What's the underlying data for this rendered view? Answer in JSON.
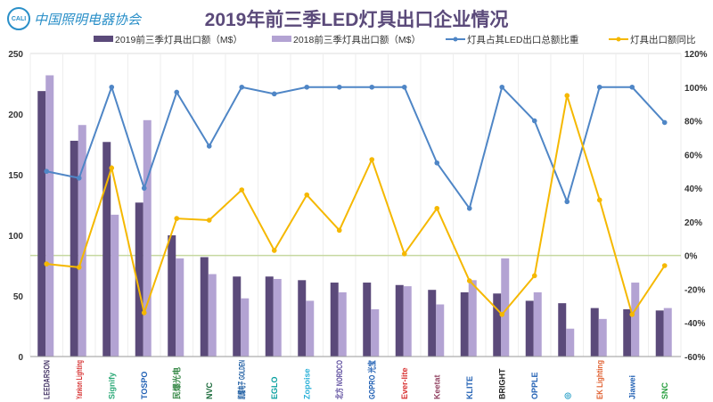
{
  "header": {
    "org_logo_text": "中国照明电器协会",
    "org_logo_mark": "CALI"
  },
  "chart_data": {
    "type": "bar",
    "title": "2019年前三季LED灯具出口企业情况",
    "categories": [
      "LEEDARSON",
      "Yankon Lighting",
      "Signify",
      "TOSPO",
      "民爆光电",
      "NVC",
      "凯耀电子 GOLDEN",
      "EGLO",
      "Zopoise",
      "北方 NORDCO",
      "GOPRO 光宝",
      "Ever-lite",
      "Keetat",
      "KLITE",
      "BRIGHT",
      "OPPLE",
      "(globe logo)",
      "EK Lighting",
      "Jiawei",
      "SNC"
    ],
    "left_axis": {
      "ylim": [
        0,
        250
      ],
      "ticks": [
        0,
        50,
        100,
        150,
        200,
        250
      ]
    },
    "right_axis": {
      "ylim": [
        -60,
        120
      ],
      "ticks": [
        "-60%",
        "-40%",
        "-20%",
        "0%",
        "20%",
        "40%",
        "60%",
        "80%",
        "100%",
        "120%"
      ]
    },
    "legend_position": "top",
    "grid": false,
    "series": [
      {
        "name": "2019前三季灯具出口额（M$）",
        "kind": "bar",
        "axis": "left",
        "color": "#5b4a7a",
        "values": [
          219,
          178,
          177,
          127,
          100,
          82,
          66,
          66,
          63,
          61,
          61,
          59,
          55,
          53,
          52,
          46,
          44,
          40,
          39,
          38
        ]
      },
      {
        "name": "2018前三季灯具出口额（M$）",
        "kind": "bar",
        "axis": "left",
        "color": "#b3a3d3",
        "values": [
          232,
          191,
          117,
          195,
          81,
          68,
          48,
          64,
          46,
          53,
          39,
          58,
          43,
          63,
          81,
          53,
          23,
          31,
          61,
          40
        ]
      },
      {
        "name": "灯具占其LED出口总额比重",
        "kind": "line",
        "axis": "right",
        "color": "#4f86c6",
        "values": [
          50,
          46,
          100,
          40,
          97,
          65,
          100,
          96,
          100,
          100,
          100,
          100,
          55,
          28,
          100,
          80,
          32,
          100,
          100,
          79
        ]
      },
      {
        "name": "灯具出口额同比",
        "kind": "line",
        "axis": "right",
        "color": "#f5b800",
        "values": [
          -5,
          -7,
          52,
          -34,
          22,
          21,
          39,
          3,
          36,
          15,
          57,
          1,
          28,
          -15,
          -35,
          -12,
          95,
          33,
          -35,
          -6
        ]
      }
    ]
  }
}
